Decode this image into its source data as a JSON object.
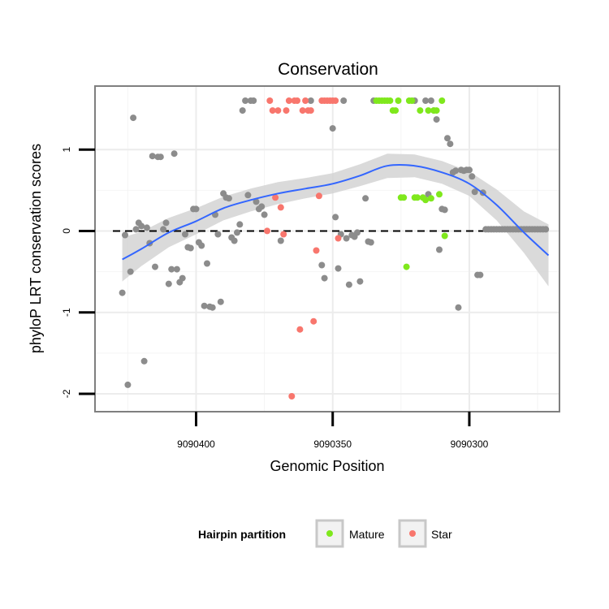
{
  "chart_data": {
    "type": "scatter",
    "title": "Conservation",
    "xlabel": "Genomic Position",
    "ylabel": "phyloP LRT conservation scores",
    "x_reversed": true,
    "xlim": [
      9090437,
      9090267
    ],
    "ylim": [
      -2.22,
      1.78
    ],
    "x_ticks": [
      9090400,
      9090350,
      9090300
    ],
    "x_tick_labels": [
      "9090400",
      "9090350",
      "9090300"
    ],
    "y_ticks": [
      -2,
      -1,
      0,
      1
    ],
    "y_tick_labels": [
      "-2",
      "-1",
      "0",
      "1"
    ],
    "grid": true,
    "reference_line": {
      "y": 0,
      "style": "dashed"
    },
    "legend": {
      "title": "Hairpin partition",
      "placement": "bottom",
      "entries": [
        {
          "label": "Mature",
          "color": "#7FE81C"
        },
        {
          "label": "Star",
          "color": "#F8766D"
        }
      ]
    },
    "colors": {
      "other": "#8C8C8C",
      "Mature": "#7FE81C",
      "Star": "#F8766D",
      "smooth": "#3366FF",
      "band": "#D3D3D3"
    },
    "series": [
      {
        "group": "other",
        "points": [
          [
            9090427,
            -0.76
          ],
          [
            9090426,
            -0.05
          ],
          [
            9090425,
            -1.89
          ],
          [
            9090424,
            -0.5
          ],
          [
            9090423,
            1.39
          ],
          [
            9090422,
            0.02
          ],
          [
            9090421,
            0.1
          ],
          [
            9090420,
            0.06
          ],
          [
            9090419,
            -1.6
          ],
          [
            9090418,
            0.04
          ],
          [
            9090417,
            -0.15
          ],
          [
            9090416,
            0.92
          ],
          [
            9090415,
            -0.44
          ],
          [
            9090414,
            0.91
          ],
          [
            9090413,
            0.91
          ],
          [
            9090412,
            0.02
          ],
          [
            9090411,
            0.1
          ],
          [
            9090410,
            -0.65
          ],
          [
            9090409,
            -0.47
          ],
          [
            9090408,
            0.95
          ],
          [
            9090407,
            -0.47
          ],
          [
            9090406,
            -0.63
          ],
          [
            9090405,
            -0.58
          ],
          [
            9090404,
            -0.04
          ],
          [
            9090403,
            -0.2
          ],
          [
            9090402,
            -0.21
          ],
          [
            9090401,
            0.27
          ],
          [
            9090400,
            0.27
          ],
          [
            9090399,
            -0.14
          ],
          [
            9090398,
            -0.18
          ],
          [
            9090397,
            -0.92
          ],
          [
            9090396,
            -0.4
          ],
          [
            9090395,
            -0.93
          ],
          [
            9090394,
            -0.94
          ],
          [
            9090393,
            0.2
          ],
          [
            9090392,
            -0.04
          ],
          [
            9090391,
            -0.87
          ],
          [
            9090390,
            0.46
          ],
          [
            9090389,
            0.41
          ],
          [
            9090388,
            0.4
          ],
          [
            9090387,
            -0.08
          ],
          [
            9090386,
            -0.12
          ],
          [
            9090385,
            -0.02
          ],
          [
            9090384,
            0.08
          ],
          [
            9090383,
            1.48
          ],
          [
            9090382,
            1.6
          ],
          [
            9090381,
            0.44
          ],
          [
            9090380,
            1.6
          ],
          [
            9090379,
            1.6
          ],
          [
            9090378,
            0.36
          ],
          [
            9090377,
            0.27
          ],
          [
            9090376,
            0.3
          ],
          [
            9090375,
            0.2
          ],
          [
            9090369,
            -0.12
          ],
          [
            9090358,
            1.6
          ],
          [
            9090354,
            -0.42
          ],
          [
            9090353,
            -0.58
          ],
          [
            9090350,
            1.26
          ],
          [
            9090349,
            0.17
          ],
          [
            9090348,
            -0.46
          ],
          [
            9090347,
            -0.04
          ],
          [
            9090346,
            1.6
          ],
          [
            9090345,
            -0.09
          ],
          [
            9090344,
            -0.66
          ],
          [
            9090343,
            -0.05
          ],
          [
            9090342,
            -0.07
          ],
          [
            9090341,
            -0.02
          ],
          [
            9090340,
            -0.62
          ],
          [
            9090338,
            0.4
          ],
          [
            9090337,
            -0.13
          ],
          [
            9090336,
            -0.14
          ],
          [
            9090335,
            1.6
          ],
          [
            9090320,
            1.6
          ],
          [
            9090316,
            1.6
          ],
          [
            9090315,
            0.45
          ],
          [
            9090314,
            1.6
          ],
          [
            9090313,
            1.48
          ],
          [
            9090312,
            1.37
          ],
          [
            9090311,
            -0.23
          ],
          [
            9090310,
            0.27
          ],
          [
            9090309,
            0.26
          ],
          [
            9090308,
            1.14
          ],
          [
            9090307,
            1.07
          ],
          [
            9090306,
            0.72
          ],
          [
            9090305,
            0.74
          ],
          [
            9090304,
            -0.94
          ],
          [
            9090303,
            0.75
          ],
          [
            9090302,
            0.74
          ],
          [
            9090301,
            0.75
          ],
          [
            9090300,
            0.75
          ],
          [
            9090299,
            0.67
          ],
          [
            9090298,
            0.48
          ],
          [
            9090297,
            -0.54
          ],
          [
            9090296,
            -0.54
          ],
          [
            9090295,
            0.47
          ],
          [
            9090294,
            0.02
          ],
          [
            9090293,
            0.02
          ],
          [
            9090292,
            0.02
          ],
          [
            9090291,
            0.02
          ],
          [
            9090290,
            0.02
          ],
          [
            9090289,
            0.02
          ],
          [
            9090288,
            0.02
          ],
          [
            9090287,
            0.02
          ],
          [
            9090286,
            0.02
          ],
          [
            9090285,
            0.02
          ],
          [
            9090284,
            0.02
          ],
          [
            9090283,
            0.02
          ],
          [
            9090282,
            0.02
          ],
          [
            9090281,
            0.02
          ],
          [
            9090280,
            0.02
          ],
          [
            9090279,
            0.02
          ],
          [
            9090278,
            0.02
          ],
          [
            9090277,
            0.02
          ],
          [
            9090276,
            0.02
          ],
          [
            9090275,
            0.02
          ],
          [
            9090274,
            0.02
          ],
          [
            9090273,
            0.02
          ],
          [
            9090272,
            0.02
          ]
        ]
      },
      {
        "group": "Star",
        "points": [
          [
            9090374,
            0.0
          ],
          [
            9090373,
            1.6
          ],
          [
            9090372,
            1.48
          ],
          [
            9090371,
            0.41
          ],
          [
            9090370,
            1.48
          ],
          [
            9090369,
            0.29
          ],
          [
            9090368,
            -0.04
          ],
          [
            9090367,
            1.48
          ],
          [
            9090366,
            1.6
          ],
          [
            9090365,
            -2.03
          ],
          [
            9090364,
            1.6
          ],
          [
            9090363,
            1.6
          ],
          [
            9090362,
            -1.21
          ],
          [
            9090361,
            1.48
          ],
          [
            9090360,
            1.6
          ],
          [
            9090359,
            1.48
          ],
          [
            9090358,
            1.48
          ],
          [
            9090357,
            -1.11
          ],
          [
            9090356,
            -0.24
          ],
          [
            9090355,
            0.43
          ],
          [
            9090354,
            1.6
          ],
          [
            9090353,
            1.6
          ],
          [
            9090352,
            1.6
          ],
          [
            9090351,
            1.6
          ],
          [
            9090350,
            1.6
          ],
          [
            9090349,
            1.6
          ],
          [
            9090348,
            -0.09
          ]
        ]
      },
      {
        "group": "Mature",
        "points": [
          [
            9090334,
            1.6
          ],
          [
            9090333,
            1.6
          ],
          [
            9090332,
            1.6
          ],
          [
            9090331,
            1.6
          ],
          [
            9090330,
            1.6
          ],
          [
            9090329,
            1.6
          ],
          [
            9090328,
            1.48
          ],
          [
            9090327,
            1.48
          ],
          [
            9090326,
            1.6
          ],
          [
            9090325,
            0.41
          ],
          [
            9090324,
            0.41
          ],
          [
            9090323,
            -0.44
          ],
          [
            9090322,
            1.6
          ],
          [
            9090321,
            1.6
          ],
          [
            9090320,
            0.41
          ],
          [
            9090319,
            0.41
          ],
          [
            9090318,
            1.48
          ],
          [
            9090317,
            0.41
          ],
          [
            9090316,
            0.38
          ],
          [
            9090315,
            1.48
          ],
          [
            9090314,
            0.4
          ],
          [
            9090313,
            1.48
          ],
          [
            9090312,
            1.48
          ],
          [
            9090311,
            0.45
          ],
          [
            9090310,
            1.6
          ],
          [
            9090309,
            -0.06
          ]
        ]
      }
    ],
    "smooth": [
      [
        9090427,
        -0.35
      ],
      [
        9090420,
        -0.22
      ],
      [
        9090410,
        -0.02
      ],
      [
        9090400,
        0.12
      ],
      [
        9090390,
        0.28
      ],
      [
        9090380,
        0.38
      ],
      [
        9090370,
        0.46
      ],
      [
        9090360,
        0.52
      ],
      [
        9090350,
        0.58
      ],
      [
        9090340,
        0.68
      ],
      [
        9090330,
        0.8
      ],
      [
        9090320,
        0.8
      ],
      [
        9090310,
        0.72
      ],
      [
        9090300,
        0.58
      ],
      [
        9090290,
        0.32
      ],
      [
        9090280,
        -0.02
      ],
      [
        9090271,
        -0.3
      ]
    ],
    "smooth_band": [
      [
        9090427,
        -0.62,
        -0.08
      ],
      [
        9090420,
        -0.43,
        -0.01
      ],
      [
        9090410,
        -0.2,
        0.16
      ],
      [
        9090400,
        -0.04,
        0.28
      ],
      [
        9090390,
        0.13,
        0.42
      ],
      [
        9090380,
        0.24,
        0.52
      ],
      [
        9090370,
        0.33,
        0.6
      ],
      [
        9090360,
        0.4,
        0.65
      ],
      [
        9090350,
        0.46,
        0.71
      ],
      [
        9090340,
        0.55,
        0.82
      ],
      [
        9090330,
        0.65,
        0.95
      ],
      [
        9090320,
        0.66,
        0.94
      ],
      [
        9090310,
        0.58,
        0.86
      ],
      [
        9090300,
        0.43,
        0.73
      ],
      [
        9090290,
        0.13,
        0.51
      ],
      [
        9090280,
        -0.27,
        0.24
      ],
      [
        9090271,
        -0.68,
        0.08
      ]
    ]
  }
}
